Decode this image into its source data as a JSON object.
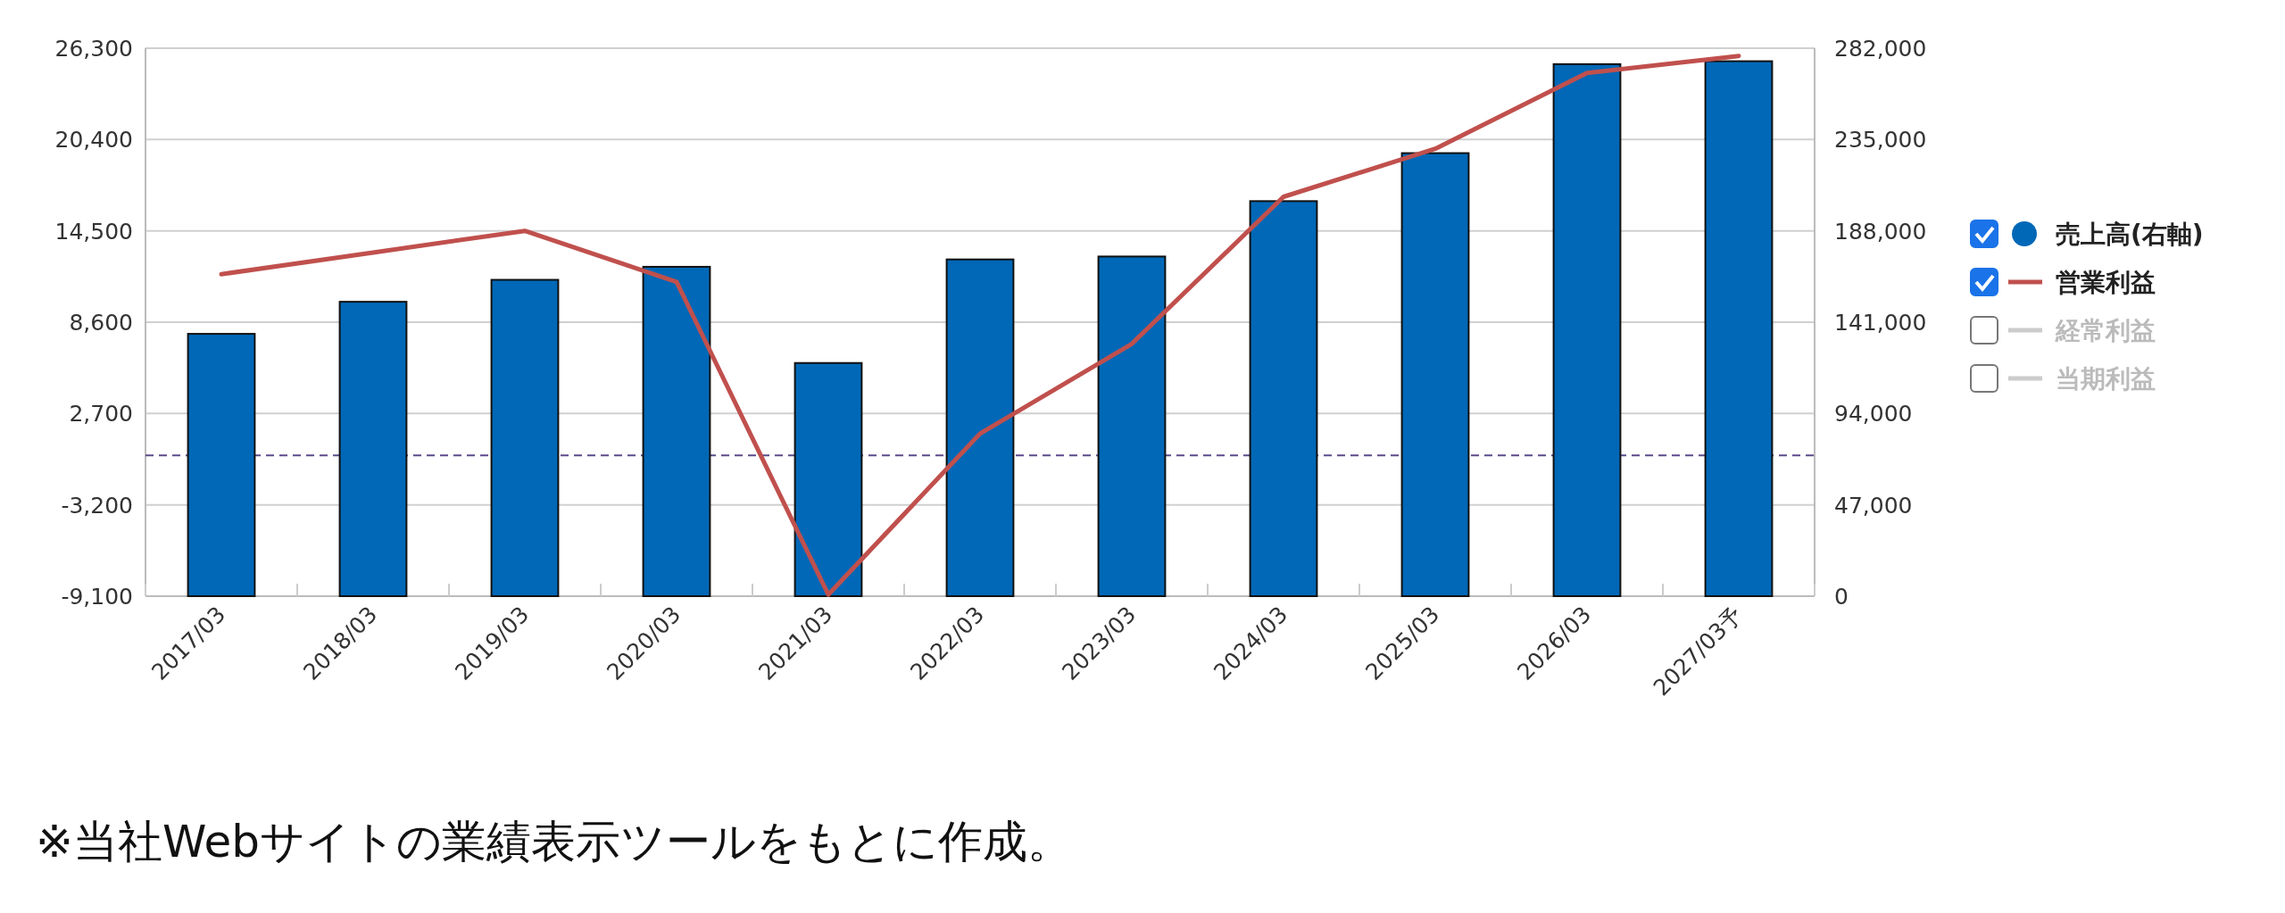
{
  "chart_data": {
    "type": "bar",
    "categories": [
      "2017/03",
      "2018/03",
      "2019/03",
      "2020/03",
      "2021/03",
      "2022/03",
      "2023/03",
      "2024/03",
      "2025/03",
      "2026/03",
      "2027/03予"
    ],
    "series": [
      {
        "name": "売上高(右軸)",
        "axis": "y2",
        "color": "#0068b7",
        "values": [
          135000,
          151500,
          162800,
          169500,
          120000,
          173300,
          174800,
          203300,
          228000,
          273800,
          275300
        ]
      },
      {
        "name": "営業利益",
        "type": "line",
        "color": "#c0504d",
        "values": [
          11700,
          13100,
          14500,
          11200,
          -9000,
          1400,
          7200,
          16700,
          19800,
          24700,
          25800
        ]
      },
      {
        "name": "経常利益",
        "type": "line",
        "color": "#cccccc",
        "values": [
          null,
          null,
          null,
          null,
          null,
          null,
          null,
          null,
          null,
          null,
          null
        ]
      },
      {
        "name": "当期利益",
        "type": "line",
        "color": "#cccccc",
        "values": [
          null,
          null,
          null,
          null,
          null,
          null,
          null,
          null,
          null,
          null,
          null
        ]
      }
    ],
    "ylim": [
      -9100,
      26300
    ],
    "yticks": [
      {
        "value": -9100,
        "label": "-9,100"
      },
      {
        "value": -3200,
        "label": "-3,200"
      },
      {
        "value": 2700,
        "label": "2,700"
      },
      {
        "value": 8600,
        "label": "8,600"
      },
      {
        "value": 14500,
        "label": "14,500"
      },
      {
        "value": 20400,
        "label": "20,400"
      },
      {
        "value": 26300,
        "label": "26,300"
      }
    ],
    "y2lim": [
      0,
      282000
    ],
    "y2ticks": [
      0,
      {
        "value": 47000,
        "label": "47,000"
      },
      {
        "value": 94000,
        "label": "94,000"
      },
      {
        "value": 141000,
        "label": "141,000"
      },
      {
        "value": 188000,
        "label": "188,000"
      },
      {
        "value": 235000,
        "label": "235,000"
      },
      {
        "value": 282000,
        "label": "282,000"
      }
    ],
    "ref_lines": [
      {
        "axis": "y",
        "value": 0,
        "color": "#5b4a8a",
        "line_style": "dashed"
      }
    ],
    "grid": "y",
    "legend": "right",
    "annotations": [
      "※当社Webサイトの業績表示ツールをもとに作成。"
    ]
  }
}
